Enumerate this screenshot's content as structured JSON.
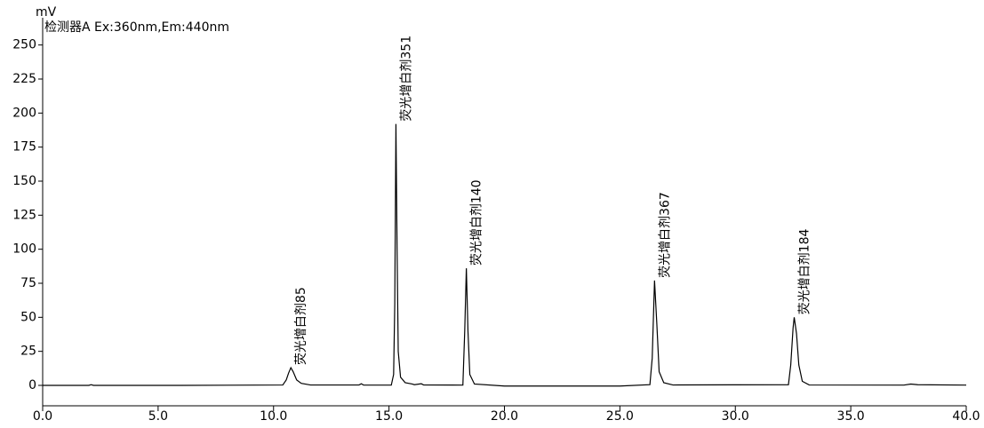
{
  "chart_data": {
    "type": "line",
    "ylabel": "mV",
    "series": [
      {
        "name": "检测器A Ex:360nm,Em:440nm",
        "color": "#000000",
        "x": [
          0,
          2,
          2.1,
          2.2,
          6,
          10.4,
          10.55,
          10.65,
          10.75,
          10.85,
          11.0,
          11.2,
          11.6,
          13.7,
          13.8,
          13.9,
          15.1,
          15.2,
          15.25,
          15.3,
          15.35,
          15.4,
          15.5,
          15.7,
          16.0,
          16.1,
          16.4,
          16.5,
          18.2,
          18.28,
          18.35,
          18.42,
          18.5,
          18.7,
          20,
          25,
          26.3,
          26.4,
          26.5,
          26.6,
          26.7,
          26.9,
          27.3,
          32.3,
          32.4,
          32.5,
          32.55,
          32.65,
          32.75,
          32.9,
          33.2,
          37.3,
          37.6,
          37.9,
          40
        ],
        "values": [
          0,
          0,
          0.5,
          0,
          0,
          0.3,
          4,
          9,
          13,
          10,
          4,
          1.5,
          0.3,
          0.3,
          1.2,
          0.2,
          0.2,
          8,
          60,
          192,
          100,
          25,
          6,
          2,
          1,
          0.5,
          1.2,
          0.3,
          0.2,
          40,
          86,
          40,
          8,
          1,
          -0.5,
          -0.5,
          0.5,
          20,
          77,
          45,
          10,
          2,
          0.3,
          0.5,
          15,
          42,
          50,
          38,
          15,
          3,
          0.3,
          0.2,
          1,
          0.5,
          0.2
        ]
      }
    ],
    "annotations": [
      {
        "text": "荧光增白剂85",
        "x": 10.75,
        "y": 13
      },
      {
        "text": "荧光增白剂351",
        "x": 15.3,
        "y": 192
      },
      {
        "text": "荧光增白剂140",
        "x": 18.35,
        "y": 86
      },
      {
        "text": "荧光增白剂367",
        "x": 26.5,
        "y": 77
      },
      {
        "text": "荧光增白剂184",
        "x": 32.55,
        "y": 50
      }
    ],
    "xlim": [
      0,
      40
    ],
    "xticks": [
      {
        "value": 0,
        "label": "0.0"
      },
      {
        "value": 5,
        "label": "5.0"
      },
      {
        "value": 10,
        "label": "10.0"
      },
      {
        "value": 15,
        "label": "15.0"
      },
      {
        "value": 20,
        "label": "20.0"
      },
      {
        "value": 25,
        "label": "25.0"
      },
      {
        "value": 30,
        "label": "30.0"
      },
      {
        "value": 35,
        "label": "35.0"
      },
      {
        "value": 40,
        "label": "40.0"
      }
    ],
    "ylim": [
      -15,
      270
    ],
    "yticks": [
      0,
      25,
      50,
      75,
      100,
      125,
      150,
      175,
      200,
      225,
      250
    ]
  }
}
